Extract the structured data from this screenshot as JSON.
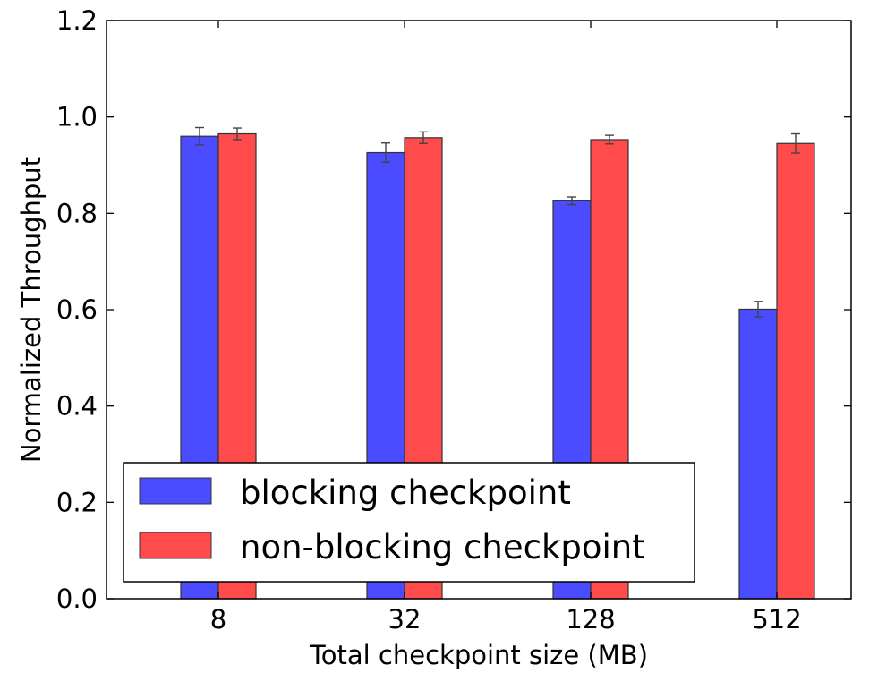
{
  "chart_data": {
    "type": "bar",
    "title": "",
    "xlabel": "Total checkpoint size (MB)",
    "ylabel": "Normalized Throughput",
    "categories": [
      "8",
      "32",
      "128",
      "512"
    ],
    "ylim": [
      0.0,
      1.2
    ],
    "yticks": [
      "0.0",
      "0.2",
      "0.4",
      "0.6",
      "0.8",
      "1.0",
      "1.2"
    ],
    "grid": false,
    "legend_position": "lower-left",
    "series": [
      {
        "name": "blocking checkpoint",
        "color": "#4b4bff",
        "values": [
          0.96,
          0.926,
          0.826,
          0.601
        ],
        "errors": [
          0.018,
          0.02,
          0.008,
          0.016
        ]
      },
      {
        "name": "non-blocking checkpoint",
        "color": "#ff4b4b",
        "values": [
          0.965,
          0.957,
          0.953,
          0.945
        ],
        "errors": [
          0.012,
          0.012,
          0.009,
          0.02
        ]
      }
    ]
  }
}
